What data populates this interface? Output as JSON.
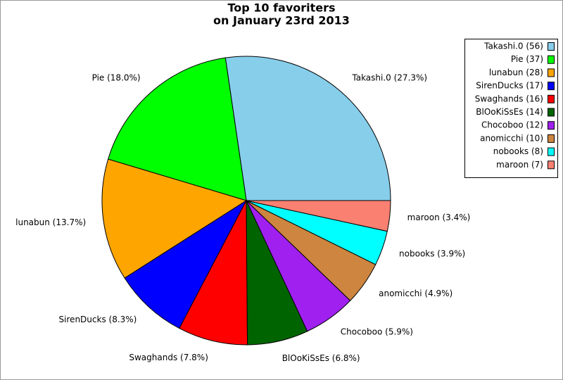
{
  "chart_data": {
    "type": "pie",
    "title": [
      "Top 10 favoriters",
      "on January 23rd 2013"
    ],
    "values": [
      56,
      37,
      28,
      17,
      16,
      14,
      12,
      10,
      8,
      7
    ],
    "slice_labels": [
      "Takashi.0 (27.3%)",
      "Pie (18.0%)",
      "lunabun (13.7%)",
      "SirenDucks (8.3%)",
      "Swaghands (7.8%)",
      "BlOoKiSsEs (6.8%)",
      "Chocoboo (5.9%)",
      "anomicchi (4.9%)",
      "nobooks (3.9%)",
      "maroon (3.4%)"
    ],
    "legend": [
      "Takashi.0 (56)",
      "Pie (37)",
      "lunabun (28)",
      "SirenDucks (17)",
      "Swaghands (16)",
      "BlOoKiSsEs (14)",
      "Chocoboo (12)",
      "anomicchi (10)",
      "nobooks (8)",
      "maroon (7)"
    ],
    "colors": [
      "#87ceeb",
      "#00ff00",
      "#ffa500",
      "#0000ff",
      "#ff0000",
      "#006400",
      "#a020f0",
      "#cd853f",
      "#00ffff",
      "#fa8072"
    ],
    "legend_position": "upper right"
  }
}
